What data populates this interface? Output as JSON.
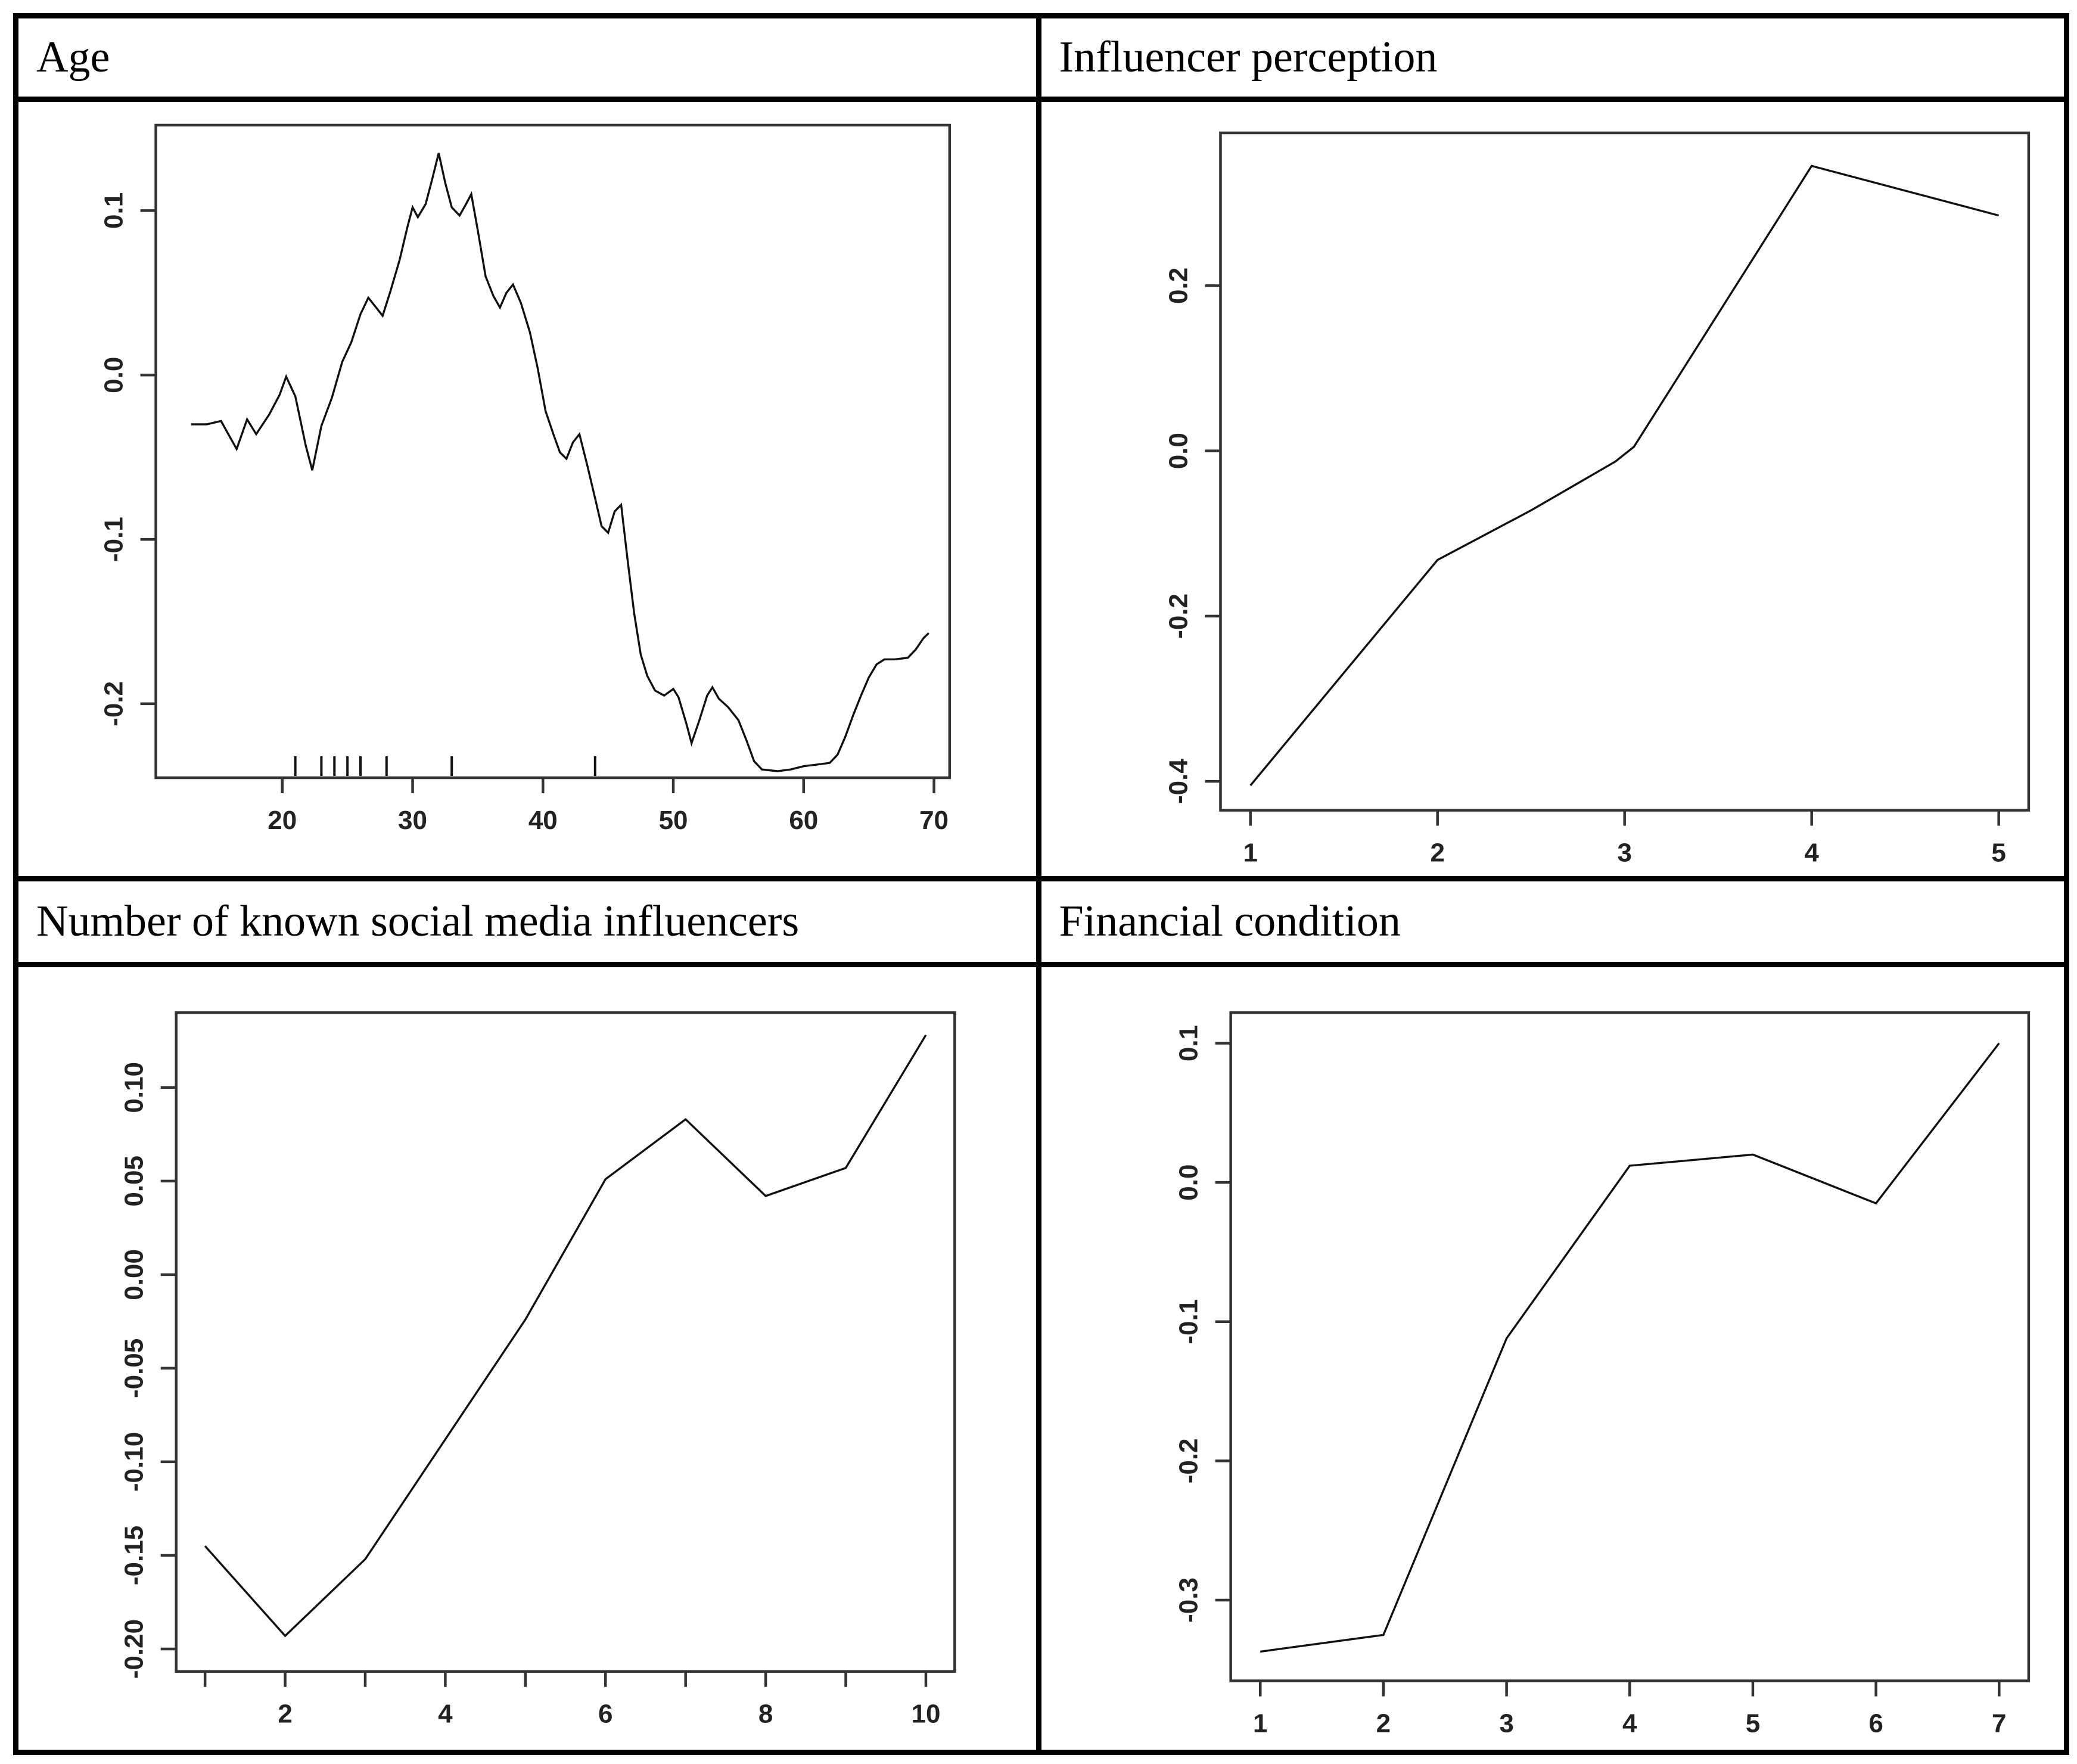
{
  "figure": {
    "background": "#ffffff",
    "border_color": "#000000",
    "line_color": "#111111",
    "axis_color": "#333333",
    "tick_label_color": "#222222"
  },
  "chart_data": [
    {
      "id": "age",
      "type": "line",
      "title": "Age",
      "xlim": [
        10.3,
        71.2
      ],
      "ylim": [
        -0.245,
        0.152
      ],
      "xticks": [
        {
          "v": 20,
          "label": "20"
        },
        {
          "v": 30,
          "label": "30"
        },
        {
          "v": 40,
          "label": "40"
        },
        {
          "v": 50,
          "label": "50"
        },
        {
          "v": 60,
          "label": "60"
        },
        {
          "v": 70,
          "label": "70"
        }
      ],
      "yticks": [
        {
          "v": 0.1,
          "label": "0.1"
        },
        {
          "v": 0.0,
          "label": "0.0"
        },
        {
          "v": -0.1,
          "label": "-0.1"
        },
        {
          "v": -0.2,
          "label": "-0.2"
        }
      ],
      "rug": [
        21,
        23,
        24,
        25,
        26,
        28,
        33,
        44
      ],
      "points": [
        [
          13,
          -0.03
        ],
        [
          14.2,
          -0.03
        ],
        [
          15.3,
          -0.028
        ],
        [
          16,
          -0.038
        ],
        [
          16.5,
          -0.045
        ],
        [
          17.3,
          -0.027
        ],
        [
          18,
          -0.036
        ],
        [
          19,
          -0.024
        ],
        [
          19.8,
          -0.012
        ],
        [
          20.3,
          -0.001
        ],
        [
          21,
          -0.013
        ],
        [
          21.8,
          -0.043
        ],
        [
          22.3,
          -0.058
        ],
        [
          23,
          -0.031
        ],
        [
          23.8,
          -0.014
        ],
        [
          24.6,
          0.008
        ],
        [
          25.3,
          0.02
        ],
        [
          26,
          0.037
        ],
        [
          26.6,
          0.047
        ],
        [
          27.2,
          0.041
        ],
        [
          27.7,
          0.036
        ],
        [
          28.3,
          0.051
        ],
        [
          29,
          0.07
        ],
        [
          29.6,
          0.09
        ],
        [
          30,
          0.102
        ],
        [
          30.4,
          0.096
        ],
        [
          31,
          0.104
        ],
        [
          31.5,
          0.119
        ],
        [
          32,
          0.135
        ],
        [
          32.5,
          0.117
        ],
        [
          33,
          0.102
        ],
        [
          33.6,
          0.097
        ],
        [
          34.1,
          0.104
        ],
        [
          34.5,
          0.11
        ],
        [
          35,
          0.088
        ],
        [
          35.6,
          0.06
        ],
        [
          36.2,
          0.048
        ],
        [
          36.7,
          0.041
        ],
        [
          37.2,
          0.05
        ],
        [
          37.7,
          0.055
        ],
        [
          38.3,
          0.044
        ],
        [
          39,
          0.026
        ],
        [
          39.6,
          0.004
        ],
        [
          40.2,
          -0.022
        ],
        [
          40.8,
          -0.036
        ],
        [
          41.3,
          -0.047
        ],
        [
          41.8,
          -0.051
        ],
        [
          42.3,
          -0.041
        ],
        [
          42.8,
          -0.036
        ],
        [
          43.4,
          -0.055
        ],
        [
          44,
          -0.075
        ],
        [
          44.5,
          -0.092
        ],
        [
          45,
          -0.096
        ],
        [
          45.5,
          -0.083
        ],
        [
          46,
          -0.079
        ],
        [
          46.5,
          -0.113
        ],
        [
          47,
          -0.145
        ],
        [
          47.5,
          -0.17
        ],
        [
          48,
          -0.183
        ],
        [
          48.6,
          -0.192
        ],
        [
          49.3,
          -0.195
        ],
        [
          50,
          -0.191
        ],
        [
          50.4,
          -0.196
        ],
        [
          51,
          -0.212
        ],
        [
          51.4,
          -0.224
        ],
        [
          52,
          -0.21
        ],
        [
          52.6,
          -0.195
        ],
        [
          53,
          -0.19
        ],
        [
          53.5,
          -0.197
        ],
        [
          54.2,
          -0.202
        ],
        [
          55,
          -0.21
        ],
        [
          55.6,
          -0.222
        ],
        [
          56.2,
          -0.235
        ],
        [
          56.8,
          -0.24
        ],
        [
          58,
          -0.241
        ],
        [
          59,
          -0.24
        ],
        [
          60,
          -0.238
        ],
        [
          61,
          -0.237
        ],
        [
          62,
          -0.236
        ],
        [
          62.6,
          -0.231
        ],
        [
          63.2,
          -0.22
        ],
        [
          63.8,
          -0.207
        ],
        [
          64.4,
          -0.195
        ],
        [
          65,
          -0.184
        ],
        [
          65.6,
          -0.176
        ],
        [
          66.2,
          -0.173
        ],
        [
          67,
          -0.173
        ],
        [
          68,
          -0.172
        ],
        [
          68.6,
          -0.167
        ],
        [
          69.2,
          -0.16
        ],
        [
          69.6,
          -0.157
        ]
      ]
    },
    {
      "id": "influencer",
      "type": "line",
      "title": "Influencer perception",
      "xlim": [
        0.84,
        5.16
      ],
      "ylim": [
        -0.435,
        0.385
      ],
      "xticks": [
        {
          "v": 1,
          "label": "1"
        },
        {
          "v": 2,
          "label": "2"
        },
        {
          "v": 3,
          "label": "3"
        },
        {
          "v": 4,
          "label": "4"
        },
        {
          "v": 5,
          "label": "5"
        }
      ],
      "yticks": [
        {
          "v": 0.2,
          "label": "0.2"
        },
        {
          "v": 0.0,
          "label": "0.0"
        },
        {
          "v": -0.2,
          "label": "-0.2"
        },
        {
          "v": -0.4,
          "label": "-0.4"
        }
      ],
      "points": [
        [
          1,
          -0.405
        ],
        [
          2,
          -0.132
        ],
        [
          2.5,
          -0.072
        ],
        [
          2.95,
          -0.013
        ],
        [
          3.05,
          0.005
        ],
        [
          4,
          0.345
        ],
        [
          5,
          0.285
        ]
      ]
    },
    {
      "id": "nsmi",
      "type": "line",
      "title": "Number of known social media influencers",
      "xlim": [
        0.64,
        10.36
      ],
      "ylim": [
        -0.212,
        0.14
      ],
      "xticks": [
        {
          "v": 1
        },
        {
          "v": 2,
          "label": "2"
        },
        {
          "v": 3
        },
        {
          "v": 4,
          "label": "4"
        },
        {
          "v": 5
        },
        {
          "v": 6,
          "label": "6"
        },
        {
          "v": 7
        },
        {
          "v": 8,
          "label": "8"
        },
        {
          "v": 9
        },
        {
          "v": 10,
          "label": "10"
        }
      ],
      "yticks": [
        {
          "v": 0.1,
          "label": "0.10"
        },
        {
          "v": 0.05,
          "label": "0.05"
        },
        {
          "v": 0.0,
          "label": "0.00"
        },
        {
          "v": -0.05,
          "label": "-0.05"
        },
        {
          "v": -0.1,
          "label": "-0.10"
        },
        {
          "v": -0.15,
          "label": "-0.15"
        },
        {
          "v": -0.2,
          "label": "-0.20"
        }
      ],
      "points": [
        [
          1,
          -0.145
        ],
        [
          2,
          -0.193
        ],
        [
          3,
          -0.152
        ],
        [
          4,
          -0.088
        ],
        [
          5,
          -0.024
        ],
        [
          6,
          0.051
        ],
        [
          7,
          0.083
        ],
        [
          8,
          0.042
        ],
        [
          9,
          0.057
        ],
        [
          10,
          0.128
        ]
      ]
    },
    {
      "id": "financial",
      "type": "line",
      "title": "Financial condition",
      "xlim": [
        0.76,
        7.24
      ],
      "ylim": [
        -0.358,
        0.122
      ],
      "xticks": [
        {
          "v": 1,
          "label": "1"
        },
        {
          "v": 2,
          "label": "2"
        },
        {
          "v": 3,
          "label": "3"
        },
        {
          "v": 4,
          "label": "4"
        },
        {
          "v": 5,
          "label": "5"
        },
        {
          "v": 6,
          "label": "6"
        },
        {
          "v": 7,
          "label": "7"
        }
      ],
      "yticks": [
        {
          "v": 0.1,
          "label": "0.1"
        },
        {
          "v": 0.0,
          "label": "0.0"
        },
        {
          "v": -0.1,
          "label": "-0.1"
        },
        {
          "v": -0.2,
          "label": "-0.2"
        },
        {
          "v": -0.3,
          "label": "-0.3"
        }
      ],
      "points": [
        [
          1,
          -0.337
        ],
        [
          2,
          -0.325
        ],
        [
          3,
          -0.112
        ],
        [
          4,
          0.012
        ],
        [
          5,
          0.02
        ],
        [
          6,
          -0.015
        ],
        [
          7,
          0.1
        ]
      ]
    }
  ]
}
